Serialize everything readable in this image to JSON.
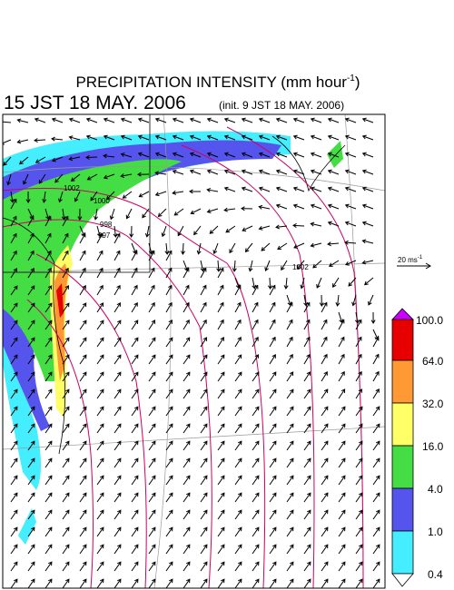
{
  "title": {
    "text": "PRECIPITATION INTENSITY (mm hour",
    "superscript": "-1",
    "close": ")"
  },
  "time": {
    "valid": "15 JST 18 MAY. 2006",
    "init": "(init. 9 JST 18 MAY. 2006)"
  },
  "scale": {
    "label": "20 ms",
    "superscript": "-1"
  },
  "colorbar": {
    "labels": [
      "100.0",
      "64.0",
      "32.0",
      "16.0",
      "4.0",
      "1.0",
      "0.4"
    ]
  },
  "isobar_labels": [
    "1002",
    "1000",
    "998",
    "997",
    "1002"
  ]
}
